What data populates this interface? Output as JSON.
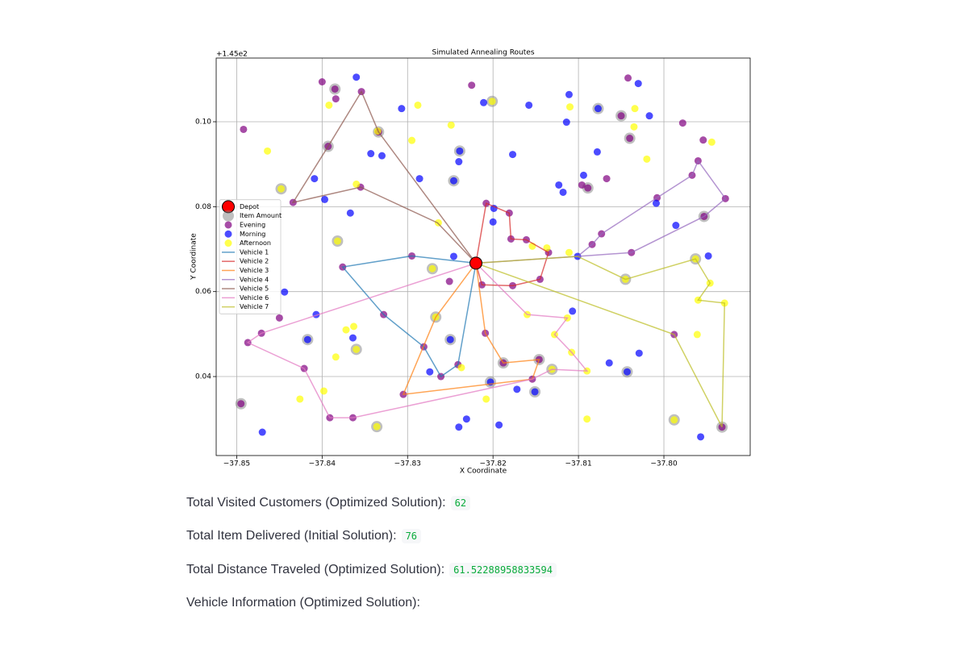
{
  "chart_data": {
    "type": "scatter",
    "title": "Simulated Annealing Routes",
    "x_label": "X Coordinate",
    "y_label": "Y Coordinate",
    "y_offset_text": "+1.45e2",
    "xlim": [
      -37.8524,
      -37.7899
    ],
    "ylim": [
      0.0214,
      0.115
    ],
    "xticks": [
      {
        "value": -37.85,
        "label": "−37.85"
      },
      {
        "value": -37.84,
        "label": "−37.84"
      },
      {
        "value": -37.83,
        "label": "−37.83"
      },
      {
        "value": -37.82,
        "label": "−37.82"
      },
      {
        "value": -37.81,
        "label": "−37.81"
      },
      {
        "value": -37.8,
        "label": "−37.80"
      }
    ],
    "yticks": [
      0.04,
      0.06,
      0.08,
      {
        "value": 0.1,
        "label": "0.10"
      }
    ],
    "grid": true,
    "legend": "center left",
    "series": [
      {
        "name": "Depot",
        "type": "scatter",
        "color": "#ff0000",
        "size": 7.5,
        "alpha": 1,
        "x": [
          -37.822
        ],
        "y": [
          0.0667
        ]
      },
      {
        "name": "Item Amount",
        "type": "scatter",
        "color": "#808080",
        "size": 7,
        "alpha": 0.5,
        "x": [
          -37.8385,
          -37.8334,
          -37.8239,
          -37.8246,
          -37.8089,
          -37.805,
          -37.804,
          -37.8077,
          -37.8448,
          -37.8393,
          -37.8382,
          -37.8271,
          -37.8267,
          -37.825,
          -37.8417,
          -37.836,
          -37.8495,
          -37.8336,
          -37.7988,
          -37.7963,
          -37.7953,
          -37.8045,
          -37.8131,
          -37.8146,
          -37.8203,
          -37.8151,
          -37.7932,
          -37.8201,
          -37.8188,
          -37.8043,
          -37.822
        ],
        "y": [
          0.1077,
          0.0976,
          0.0931,
          0.0861,
          0.0844,
          0.1014,
          0.0961,
          0.1031,
          0.0842,
          0.0942,
          0.0719,
          0.0654,
          0.054,
          0.0487,
          0.0487,
          0.0464,
          0.0336,
          0.0282,
          0.0298,
          0.0677,
          0.0777,
          0.0629,
          0.0417,
          0.044,
          0.0387,
          0.0364,
          0.0281,
          0.1048,
          0.0432,
          0.0411,
          0.0667
        ]
      },
      {
        "name": "Evening",
        "type": "scatter",
        "color": "#800080",
        "size": 4.5,
        "alpha": 0.7,
        "x": [
          -37.8492,
          -37.84,
          -37.8385,
          -37.8384,
          -37.8354,
          -37.8225,
          -37.8042,
          -37.805,
          -37.804,
          -37.7978,
          -37.7954,
          -37.8067,
          -37.8096,
          -37.8089,
          -37.8295,
          -37.8376,
          -37.8328,
          -37.8281,
          -37.8261,
          -37.8241,
          -37.8208,
          -37.8181,
          -37.8179,
          -37.8161,
          -37.8135,
          -37.8145,
          -37.8177,
          -37.8213,
          -37.8305,
          -37.8154,
          -37.8146,
          -37.8188,
          -37.8209,
          -37.8084,
          -37.8073,
          -37.8008,
          -37.7967,
          -37.796,
          -37.7928,
          -37.7953,
          -37.8038,
          -37.8355,
          -37.8434,
          -37.8393,
          -37.8334,
          -37.8364,
          -37.8391,
          -37.8421,
          -37.8487,
          -37.8471,
          -37.7932,
          -37.7988,
          -37.845,
          -37.8495,
          -37.8251
        ],
        "y": [
          0.0982,
          0.1094,
          0.1077,
          0.1054,
          0.1071,
          0.1086,
          0.1103,
          0.1014,
          0.0961,
          0.0997,
          0.0957,
          0.0866,
          0.0851,
          0.0844,
          0.0684,
          0.0658,
          0.0546,
          0.047,
          0.04,
          0.0428,
          0.0808,
          0.0785,
          0.0724,
          0.0722,
          0.0692,
          0.0629,
          0.0614,
          0.0616,
          0.0358,
          0.0394,
          0.044,
          0.0432,
          0.0502,
          0.0711,
          0.0736,
          0.0821,
          0.0874,
          0.0908,
          0.0819,
          0.0777,
          0.0692,
          0.0846,
          0.081,
          0.0942,
          0.0976,
          0.0303,
          0.0303,
          0.0419,
          0.048,
          0.0502,
          0.0281,
          0.0499,
          0.0538,
          0.0336,
          0.0624
        ]
      },
      {
        "name": "Morning",
        "type": "scatter",
        "color": "#0000ff",
        "size": 4.5,
        "alpha": 0.7,
        "x": [
          -37.836,
          -37.8307,
          -37.8211,
          -37.8158,
          -37.8111,
          -37.803,
          -37.8017,
          -37.8077,
          -37.8114,
          -37.8177,
          -37.8239,
          -37.824,
          -37.8343,
          -37.833,
          -37.8286,
          -37.8246,
          -37.8409,
          -37.8397,
          -37.8367,
          -37.8123,
          -37.8118,
          -37.8094,
          -37.8078,
          -37.8009,
          -37.7986,
          -37.7948,
          -37.8101,
          -37.8246,
          -37.8199,
          -37.82,
          -37.8444,
          -37.8407,
          -37.8417,
          -37.8364,
          -37.825,
          -37.8274,
          -37.8107,
          -37.8064,
          -37.8043,
          -37.8029,
          -37.8203,
          -37.8172,
          -37.8151,
          -37.8231,
          -37.824,
          -37.8193,
          -37.847,
          -37.7957
        ],
        "y": [
          0.1105,
          0.1031,
          0.1045,
          0.1039,
          0.1064,
          0.109,
          0.1014,
          0.1031,
          0.0999,
          0.0923,
          0.0931,
          0.0906,
          0.0925,
          0.092,
          0.0866,
          0.0861,
          0.0866,
          0.0817,
          0.0785,
          0.0851,
          0.0834,
          0.0874,
          0.0929,
          0.0808,
          0.0756,
          0.0684,
          0.0683,
          0.0683,
          0.0796,
          0.0764,
          0.0599,
          0.0546,
          0.0487,
          0.0491,
          0.0487,
          0.0411,
          0.0554,
          0.0432,
          0.0411,
          0.0455,
          0.0387,
          0.037,
          0.0364,
          0.03,
          0.0281,
          0.0286,
          0.0269,
          0.0258
        ]
      },
      {
        "name": "Afternoon",
        "type": "scatter",
        "color": "#ffff00",
        "size": 4.5,
        "alpha": 0.7,
        "x": [
          -37.8392,
          -37.8288,
          -37.8249,
          -37.8201,
          -37.811,
          -37.8034,
          -37.8035,
          -37.802,
          -37.7944,
          -37.8464,
          -37.8448,
          -37.836,
          -37.8335,
          -37.8295,
          -37.8264,
          -37.8154,
          -37.8137,
          -37.8111,
          -37.8382,
          -37.8271,
          -37.8267,
          -37.8045,
          -37.7963,
          -37.7946,
          -37.796,
          -37.7929,
          -37.7961,
          -37.816,
          -37.8113,
          -37.8128,
          -37.8108,
          -37.809,
          -37.8131,
          -37.8372,
          -37.8363,
          -37.836,
          -37.8384,
          -37.8398,
          -37.8426,
          -37.8237,
          -37.8208,
          -37.8336,
          -37.809,
          -37.7988
        ],
        "y": [
          0.1039,
          0.1039,
          0.0992,
          0.1048,
          0.1035,
          0.1031,
          0.0988,
          0.0912,
          0.0952,
          0.0931,
          0.0842,
          0.0853,
          0.0978,
          0.0956,
          0.0762,
          0.0707,
          0.0703,
          0.0692,
          0.0719,
          0.0654,
          0.054,
          0.0629,
          0.0677,
          0.062,
          0.058,
          0.0573,
          0.0499,
          0.0546,
          0.0538,
          0.0499,
          0.0457,
          0.0413,
          0.0417,
          0.051,
          0.0518,
          0.0464,
          0.0446,
          0.0366,
          0.0347,
          0.0421,
          0.0347,
          0.0282,
          0.03,
          0.0298
        ]
      },
      {
        "name": "Vehicle 1",
        "type": "line",
        "color": "#1f77b4",
        "alpha": 0.7,
        "x": [
          -37.822,
          -37.8295,
          -37.8376,
          -37.8328,
          -37.8281,
          -37.8261,
          -37.8241,
          -37.822
        ],
        "y": [
          0.0667,
          0.0684,
          0.0658,
          0.0546,
          0.047,
          0.04,
          0.0428,
          0.0667
        ]
      },
      {
        "name": "Vehicle 2",
        "type": "line",
        "color": "#d62728",
        "alpha": 0.7,
        "x": [
          -37.822,
          -37.8208,
          -37.8181,
          -37.8179,
          -37.8161,
          -37.8135,
          -37.8145,
          -37.8177,
          -37.8213,
          -37.822
        ],
        "y": [
          0.0667,
          0.0808,
          0.0785,
          0.0724,
          0.0722,
          0.0692,
          0.0629,
          0.0614,
          0.0616,
          0.0667
        ]
      },
      {
        "name": "Vehicle 3",
        "type": "line",
        "color": "#ff7f0e",
        "alpha": 0.7,
        "x": [
          -37.822,
          -37.8267,
          -37.8305,
          -37.8154,
          -37.8146,
          -37.8188,
          -37.8209,
          -37.822
        ],
        "y": [
          0.0667,
          0.054,
          0.0358,
          0.0394,
          0.044,
          0.0432,
          0.0502,
          0.0667
        ]
      },
      {
        "name": "Vehicle 4",
        "type": "line",
        "color": "#9467bd",
        "alpha": 0.7,
        "x": [
          -37.822,
          -37.8101,
          -37.8084,
          -37.8073,
          -37.8008,
          -37.7967,
          -37.796,
          -37.7928,
          -37.7953,
          -37.8038,
          -37.8101,
          -37.822
        ],
        "y": [
          0.0667,
          0.0683,
          0.0711,
          0.0736,
          0.0821,
          0.0874,
          0.0908,
          0.0819,
          0.0777,
          0.0692,
          0.0683,
          0.0667
        ]
      },
      {
        "name": "Vehicle 5",
        "type": "line",
        "color": "#8c564b",
        "alpha": 0.7,
        "x": [
          -37.822,
          -37.8265,
          -37.8355,
          -37.8434,
          -37.8393,
          -37.8354,
          -37.8334,
          -37.822
        ],
        "y": [
          0.0667,
          0.0762,
          0.0846,
          0.081,
          0.0942,
          0.1071,
          0.0976,
          0.0667
        ]
      },
      {
        "name": "Vehicle 6",
        "type": "line",
        "color": "#e377c2",
        "alpha": 0.7,
        "x": [
          -37.822,
          -37.816,
          -37.8113,
          -37.8128,
          -37.8108,
          -37.809,
          -37.8131,
          -37.8154,
          -37.8364,
          -37.8391,
          -37.8421,
          -37.8487,
          -37.8471,
          -37.822
        ],
        "y": [
          0.0667,
          0.0546,
          0.0538,
          0.0499,
          0.0457,
          0.0413,
          0.0417,
          0.0394,
          0.0303,
          0.0303,
          0.0419,
          0.048,
          0.0502,
          0.0667
        ]
      },
      {
        "name": "Vehicle 7",
        "type": "line",
        "color": "#bcbd22",
        "alpha": 0.7,
        "x": [
          -37.822,
          -37.8101,
          -37.8045,
          -37.7963,
          -37.7946,
          -37.796,
          -37.7929,
          -37.7932,
          -37.7988,
          -37.822
        ],
        "y": [
          0.0667,
          0.0683,
          0.0629,
          0.0677,
          0.062,
          0.058,
          0.0573,
          0.0281,
          0.0499,
          0.0667
        ]
      }
    ]
  },
  "metrics": [
    {
      "label": "Total Visited Customers (Optimized Solution):",
      "value": 62
    },
    {
      "label": "Total Item Delivered (Initial Solution):",
      "value": 76
    },
    {
      "label": "Total Distance Traveled (Optimized Solution):",
      "value": 61.52288958833594
    },
    {
      "label": "Vehicle Information (Optimized Solution):"
    }
  ]
}
